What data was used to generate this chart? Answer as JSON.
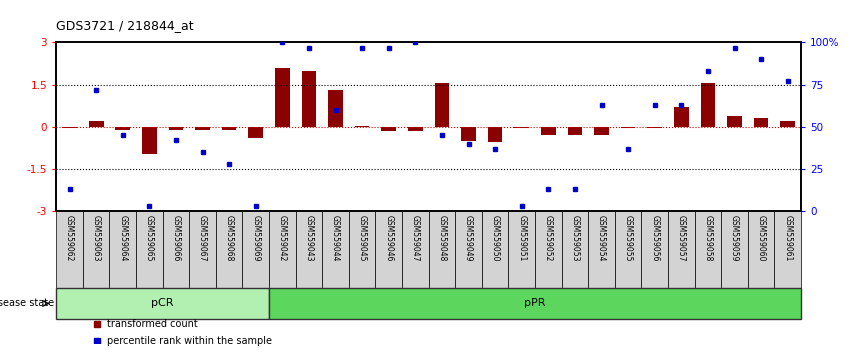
{
  "title": "GDS3721 / 218844_at",
  "samples": [
    "GSM559062",
    "GSM559063",
    "GSM559064",
    "GSM559065",
    "GSM559066",
    "GSM559067",
    "GSM559068",
    "GSM559069",
    "GSM559042",
    "GSM559043",
    "GSM559044",
    "GSM559045",
    "GSM559046",
    "GSM559047",
    "GSM559048",
    "GSM559049",
    "GSM559050",
    "GSM559051",
    "GSM559052",
    "GSM559053",
    "GSM559054",
    "GSM559055",
    "GSM559056",
    "GSM559057",
    "GSM559058",
    "GSM559059",
    "GSM559060",
    "GSM559061"
  ],
  "bar_values": [
    -0.05,
    0.2,
    -0.1,
    -0.95,
    -0.1,
    -0.1,
    -0.1,
    -0.4,
    2.1,
    2.0,
    1.3,
    0.05,
    -0.15,
    -0.15,
    1.55,
    -0.5,
    -0.55,
    -0.05,
    -0.3,
    -0.3,
    -0.3,
    -0.05,
    -0.05,
    0.7,
    1.55,
    0.4,
    0.3,
    0.2
  ],
  "dot_values": [
    13,
    72,
    45,
    3,
    42,
    35,
    28,
    3,
    100,
    97,
    60,
    97,
    97,
    100,
    45,
    40,
    37,
    3,
    13,
    13,
    63,
    37,
    63,
    63,
    83,
    97,
    90,
    77
  ],
  "pCR_count": 8,
  "pPR_count": 20,
  "bar_color": "#8B0000",
  "dot_color": "#0000CC",
  "dotted_line_color": "#000000",
  "zero_line_color": "#CC0000",
  "ylim_left": [
    -3,
    3
  ],
  "ylim_right": [
    0,
    100
  ],
  "yticks_left": [
    -3,
    -1.5,
    0,
    1.5,
    3
  ],
  "ytick_labels_left": [
    "-3",
    "-1.5",
    "0",
    "1.5",
    "3"
  ],
  "yticks_right": [
    0,
    25,
    50,
    75,
    100
  ],
  "ytick_labels_right": [
    "0",
    "25",
    "50",
    "75",
    "100%"
  ],
  "hlines": [
    -1.5,
    0,
    1.5
  ],
  "legend_red": "transformed count",
  "legend_blue": "percentile rank within the sample",
  "disease_state_label": "disease state",
  "pCR_label": "pCR",
  "pPR_label": "pPR",
  "bar_width": 0.55,
  "bg_color": "#ffffff",
  "label_area_color": "#d3d3d3",
  "pCR_color": "#b2f0b2",
  "pPR_color": "#5cd65c"
}
